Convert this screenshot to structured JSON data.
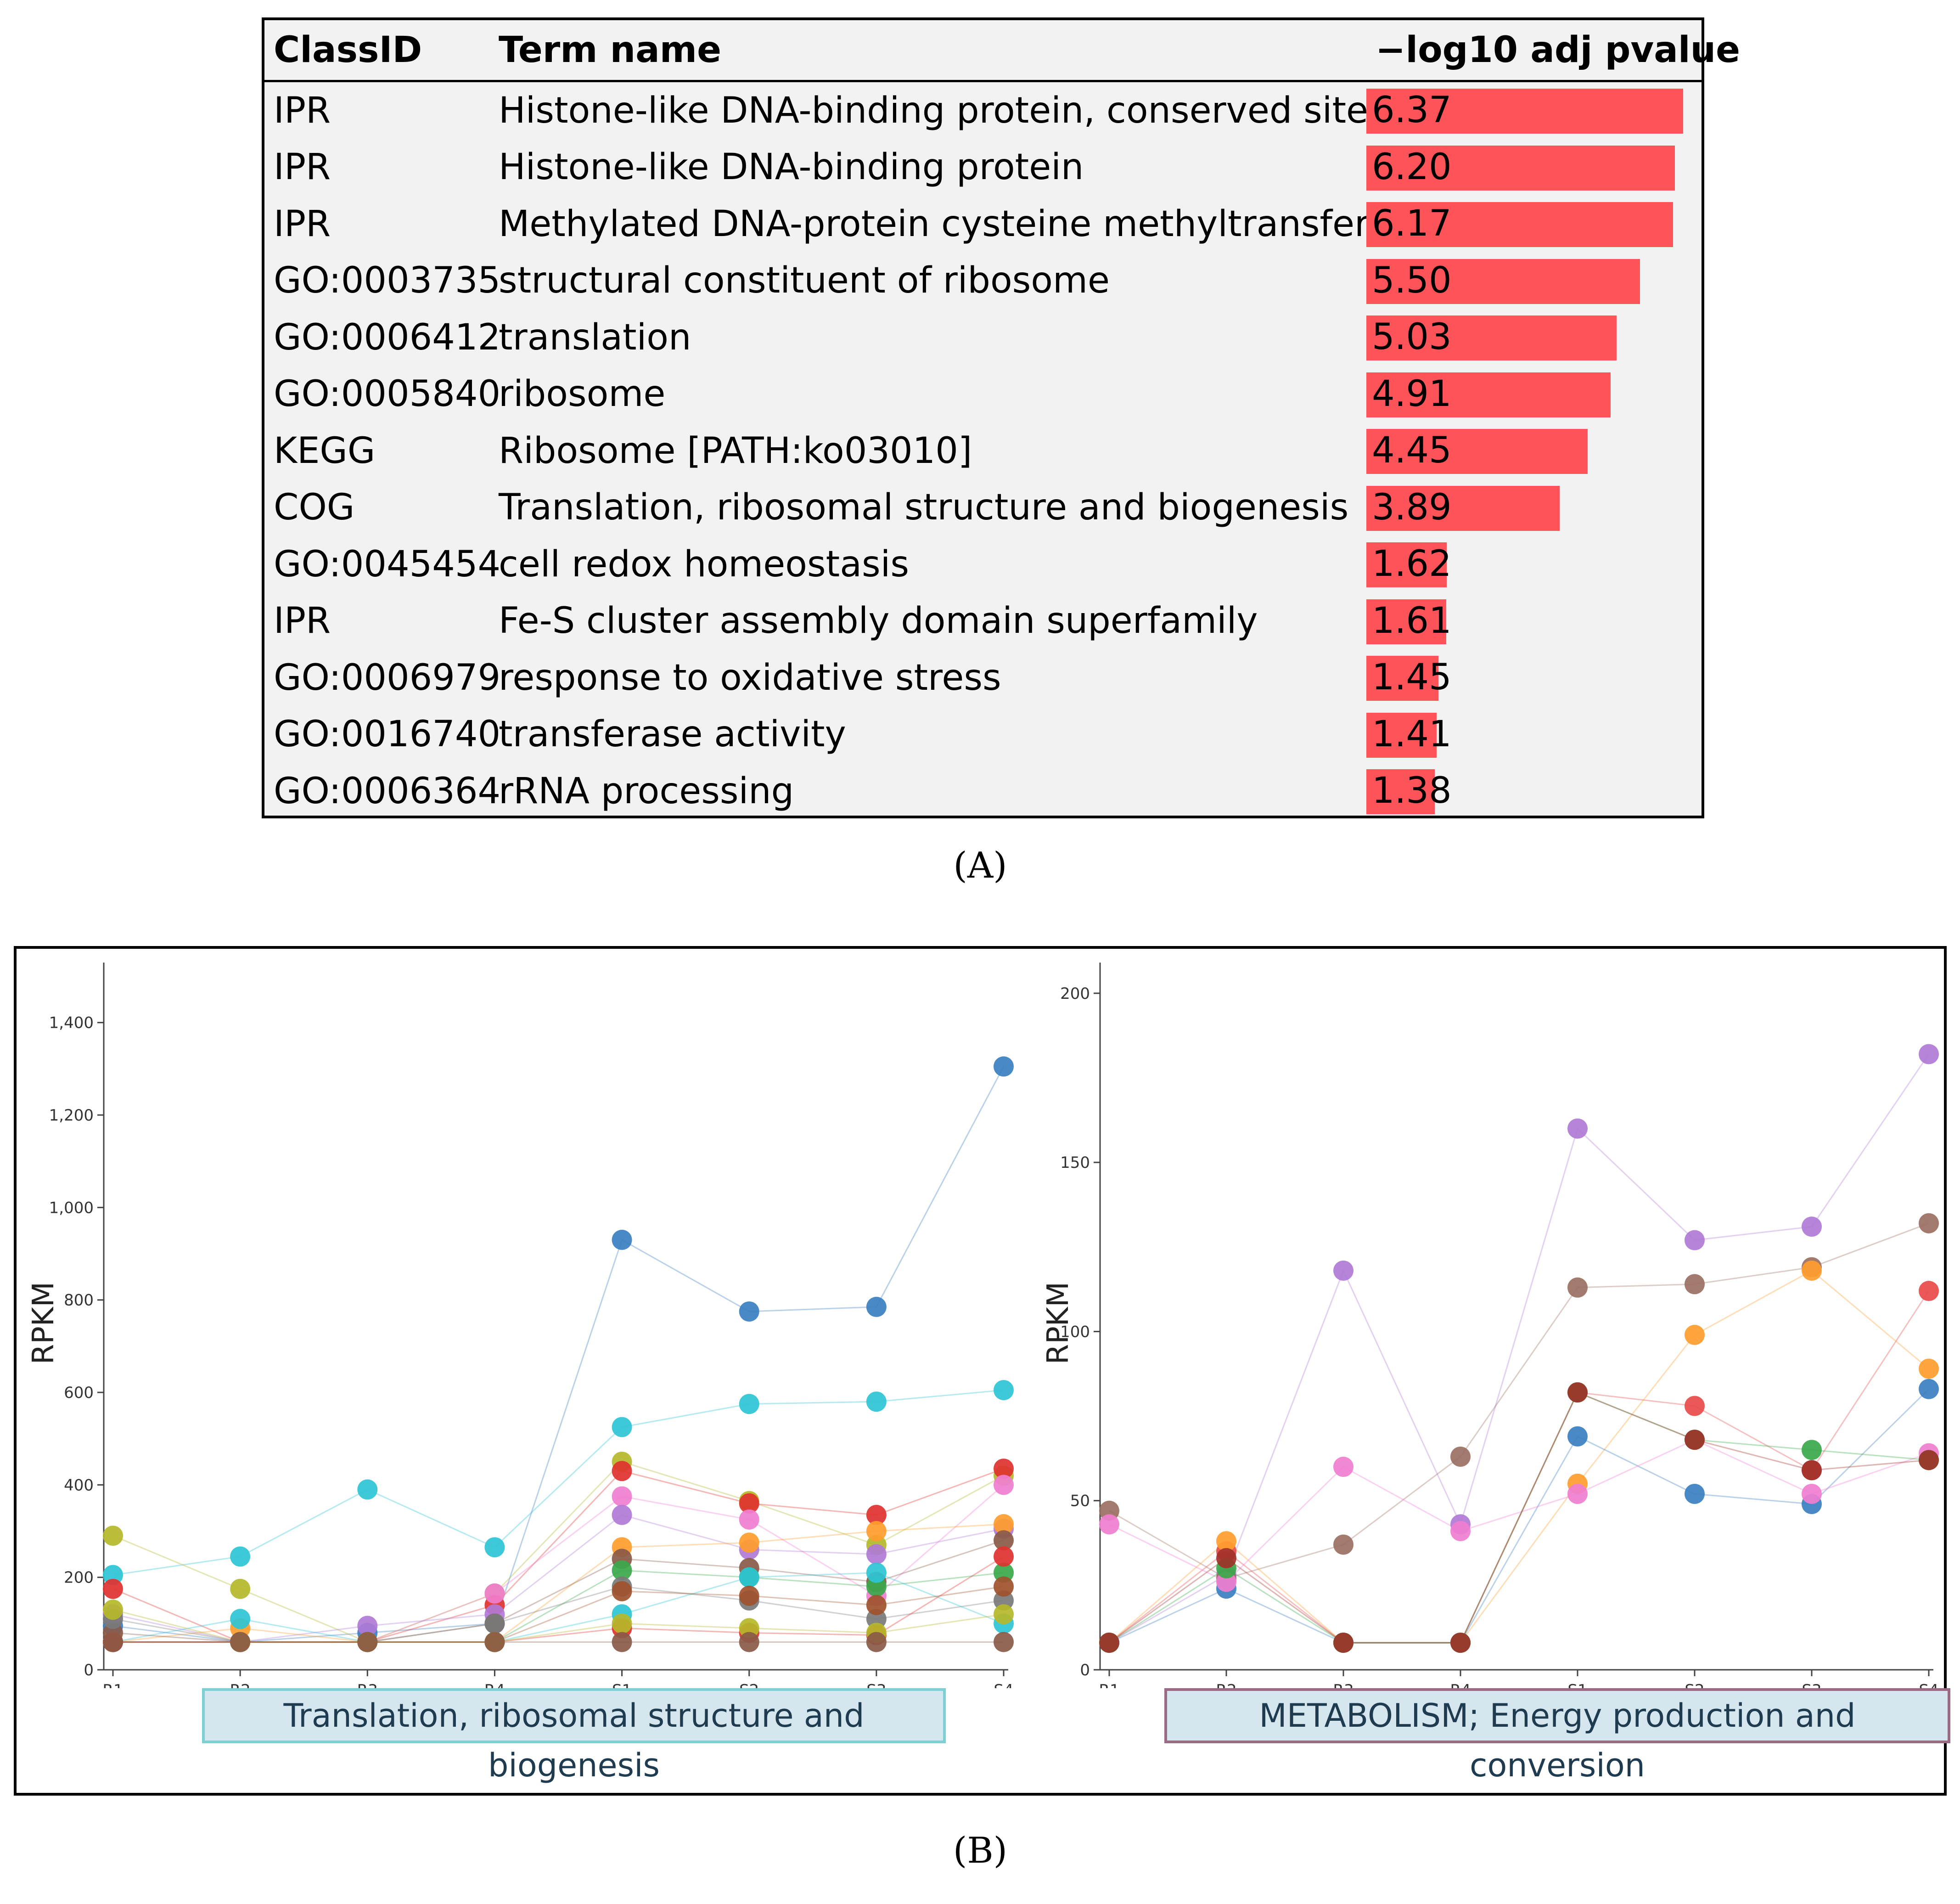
{
  "panel_a_label": "(A)",
  "panel_b_label": "(B)",
  "table": {
    "headers": [
      "ClassID",
      "Term name",
      "−log10 adj pvalue"
    ],
    "bar_color": "#fe5358",
    "bar_max": 6.37,
    "rows": [
      {
        "class_id": "IPR",
        "term": "Histone-like DNA-binding protein, conserved site",
        "value": 6.37,
        "value_label": "6.37"
      },
      {
        "class_id": "IPR",
        "term": "Histone-like DNA-binding protein",
        "value": 6.2,
        "value_label": "6.20"
      },
      {
        "class_id": "IPR",
        "term": "Methylated DNA-protein cysteine methyltransferase",
        "value": 6.17,
        "value_label": "6.17"
      },
      {
        "class_id": "GO:0003735",
        "term": "structural constituent of ribosome",
        "value": 5.5,
        "value_label": "5.50"
      },
      {
        "class_id": "GO:0006412",
        "term": "translation",
        "value": 5.03,
        "value_label": "5.03"
      },
      {
        "class_id": "GO:0005840",
        "term": "ribosome",
        "value": 4.91,
        "value_label": "4.91"
      },
      {
        "class_id": "KEGG",
        "term": "Ribosome [PATH:ko03010]",
        "value": 4.45,
        "value_label": "4.45"
      },
      {
        "class_id": "COG",
        "term": "Translation, ribosomal structure and biogenesis",
        "value": 3.89,
        "value_label": "3.89"
      },
      {
        "class_id": "GO:0045454",
        "term": "cell redox homeostasis",
        "value": 1.62,
        "value_label": "1.62"
      },
      {
        "class_id": "IPR",
        "term": "Fe-S cluster assembly domain superfamily",
        "value": 1.61,
        "value_label": "1.61"
      },
      {
        "class_id": "GO:0006979",
        "term": "response to oxidative stress",
        "value": 1.45,
        "value_label": "1.45"
      },
      {
        "class_id": "GO:0016740",
        "term": "transferase activity",
        "value": 1.41,
        "value_label": "1.41"
      },
      {
        "class_id": "GO:0006364",
        "term": "rRNA processing",
        "value": 1.38,
        "value_label": "1.38"
      }
    ]
  },
  "chart_data": [
    {
      "type": "line",
      "title": "Translation, ribosomal structure and biogenesis",
      "xlabel": "",
      "ylabel": "RPKM",
      "ylim": [
        0,
        1500
      ],
      "yticks": [
        0,
        200,
        400,
        600,
        800,
        1000,
        1200,
        1400
      ],
      "ytick_labels": [
        "0",
        "200",
        "400",
        "600",
        "800",
        "1,000",
        "1,200",
        "1,400"
      ],
      "categories": [
        "R1",
        "R2",
        "R3",
        "R4",
        "S1",
        "S2",
        "S3",
        "S4"
      ],
      "series": [
        {
          "name": "s1",
          "color": "#3a7fc1",
          "values": [
            95,
            60,
            80,
            100,
            930,
            775,
            785,
            1305
          ]
        },
        {
          "name": "s2",
          "color": "#2ec4d6",
          "values": [
            205,
            245,
            390,
            265,
            525,
            575,
            580,
            605
          ]
        },
        {
          "name": "s3",
          "color": "#b5b82a",
          "values": [
            290,
            175,
            60,
            165,
            450,
            365,
            270,
            420
          ]
        },
        {
          "name": "s4",
          "color": "#e0322f",
          "values": [
            175,
            60,
            60,
            140,
            430,
            360,
            335,
            435
          ]
        },
        {
          "name": "s5",
          "color": "#f07ed0",
          "values": [
            60,
            60,
            60,
            165,
            375,
            325,
            160,
            400
          ]
        },
        {
          "name": "s6",
          "color": "#b07ad6",
          "values": [
            120,
            60,
            95,
            120,
            335,
            260,
            250,
            305
          ]
        },
        {
          "name": "s7",
          "color": "#ff9d2e",
          "values": [
            60,
            90,
            60,
            60,
            265,
            275,
            300,
            315
          ]
        },
        {
          "name": "s8",
          "color": "#8a5a48",
          "values": [
            80,
            60,
            60,
            100,
            240,
            220,
            190,
            280
          ]
        },
        {
          "name": "s9",
          "color": "#3aa84a",
          "values": [
            60,
            60,
            60,
            60,
            215,
            200,
            180,
            210
          ]
        },
        {
          "name": "s10",
          "color": "#7a7a7a",
          "values": [
            110,
            60,
            60,
            100,
            180,
            150,
            110,
            150
          ]
        },
        {
          "name": "s11",
          "color": "#2ec4d6",
          "values": [
            60,
            110,
            60,
            60,
            120,
            200,
            210,
            100
          ]
        },
        {
          "name": "s12",
          "color": "#a0522d",
          "values": [
            60,
            60,
            60,
            60,
            170,
            160,
            140,
            180
          ]
        },
        {
          "name": "s13",
          "color": "#e0322f",
          "values": [
            60,
            60,
            60,
            60,
            90,
            80,
            75,
            245
          ]
        },
        {
          "name": "s14",
          "color": "#b5b82a",
          "values": [
            130,
            60,
            60,
            60,
            100,
            90,
            80,
            120
          ]
        },
        {
          "name": "s15",
          "color": "#8a5a48",
          "values": [
            60,
            60,
            60,
            60,
            60,
            60,
            60,
            60
          ]
        }
      ]
    },
    {
      "type": "line",
      "title": "METABOLISM; Energy production and conversion",
      "xlabel": "",
      "ylabel": "RPKM",
      "ylim": [
        0,
        205
      ],
      "yticks": [
        0,
        50,
        100,
        150,
        200
      ],
      "ytick_labels": [
        "0",
        "50",
        "100",
        "150",
        "200"
      ],
      "categories": [
        "R1",
        "R2",
        "R3",
        "R4",
        "S1",
        "S2",
        "S3",
        "S4"
      ],
      "series": [
        {
          "name": "m1",
          "color": "#b07ad6",
          "values": [
            8,
            28,
            118,
            43,
            160,
            127,
            131,
            182
          ]
        },
        {
          "name": "m2",
          "color": "#9a6f62",
          "values": [
            47,
            27,
            37,
            63,
            113,
            114,
            119,
            132
          ]
        },
        {
          "name": "m3",
          "color": "#e84a4a",
          "values": [
            8,
            35,
            8,
            8,
            82,
            78,
            59,
            112
          ]
        },
        {
          "name": "m4",
          "color": "#ff9d2e",
          "values": [
            8,
            38,
            8,
            8,
            55,
            99,
            118,
            89
          ]
        },
        {
          "name": "m5",
          "color": "#3a7fc1",
          "values": [
            8,
            24,
            8,
            8,
            69,
            52,
            49,
            83
          ]
        },
        {
          "name": "m6",
          "color": "#f07ed0",
          "values": [
            43,
            26,
            60,
            41,
            52,
            68,
            52,
            64
          ]
        },
        {
          "name": "m7",
          "color": "#3aa84a",
          "values": [
            8,
            30,
            8,
            8,
            82,
            68,
            65,
            62
          ]
        },
        {
          "name": "m8",
          "color": "#a0322a",
          "values": [
            8,
            33,
            8,
            8,
            82,
            68,
            59,
            62
          ]
        }
      ]
    }
  ]
}
